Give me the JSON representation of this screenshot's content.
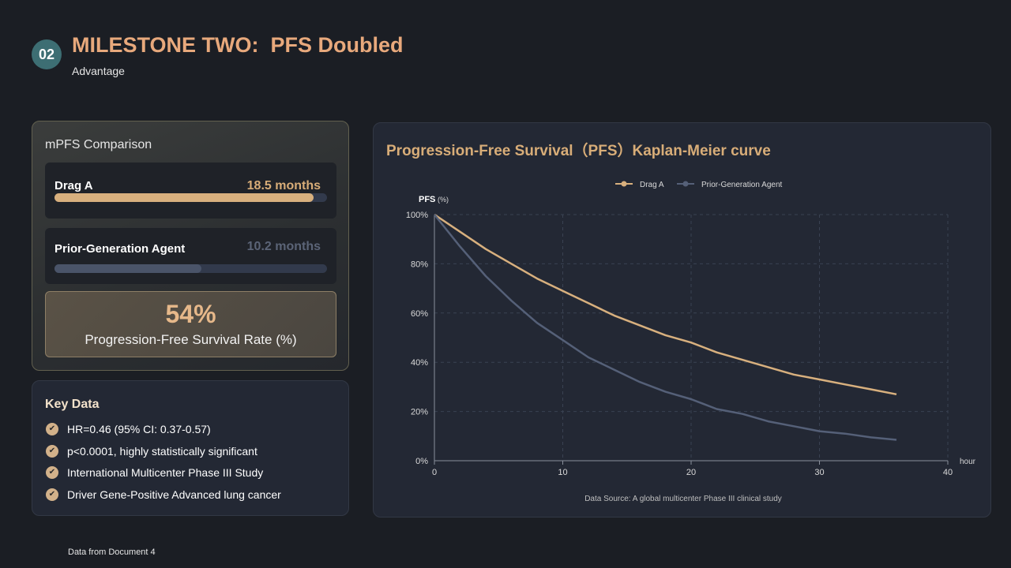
{
  "header": {
    "badge": "02",
    "title": "MILESTONE TWO:  PFS Doubled",
    "subtitle": "Advantage"
  },
  "mpfs": {
    "title": "mPFS Comparison",
    "rows": [
      {
        "label": "Drag A",
        "value_text": "18.5 months",
        "fill_fraction": 0.95
      },
      {
        "label": "Prior-Generation Agent",
        "value_text": "10.2 months",
        "fill_fraction": 0.54
      }
    ],
    "stat": {
      "value": "54%",
      "label": "Progression-Free Survival Rate (%)"
    }
  },
  "key_data": {
    "title": "Key Data",
    "items": [
      "HR=0.46 (95% CI: 0.37-0.57)",
      "p<0.0001, highly statistically significant",
      "International Multicenter Phase III Study",
      "Driver Gene-Positive Advanced lung cancer"
    ]
  },
  "chart_data": {
    "type": "line",
    "title": "Progression-Free Survival（PFS）Kaplan-Meier curve",
    "ylabel": "PFS",
    "ylabel_unit": "(%)",
    "xlabel": "hour",
    "xlim": [
      0,
      40
    ],
    "ylim": [
      0,
      100
    ],
    "x_ticks": [
      0,
      10,
      20,
      30,
      40
    ],
    "y_ticks": [
      0,
      20,
      40,
      60,
      80,
      100
    ],
    "y_tick_labels": [
      "0%",
      "20%",
      "40%",
      "60%",
      "80%",
      "100%"
    ],
    "grid": true,
    "legend_position": "top-center",
    "series": [
      {
        "name": "Drag A",
        "color": "#d8b07e",
        "x": [
          0,
          2,
          4,
          6,
          8,
          10,
          12,
          14,
          16,
          18,
          20,
          22,
          24,
          26,
          28,
          30,
          32,
          34,
          36
        ],
        "y": [
          100,
          93,
          86,
          80,
          74,
          69,
          64,
          59,
          55,
          51,
          48,
          44,
          41,
          38,
          35,
          33,
          31,
          29,
          27
        ]
      },
      {
        "name": "Prior-Generation Agent",
        "color": "#556078",
        "x": [
          0,
          2,
          4,
          6,
          8,
          10,
          12,
          14,
          16,
          18,
          20,
          22,
          24,
          26,
          28,
          30,
          32,
          34,
          36
        ],
        "y": [
          100,
          87,
          75,
          65,
          56,
          49,
          42,
          37,
          32,
          28,
          25,
          21,
          19,
          16,
          14,
          12,
          11,
          9.5,
          8.5
        ]
      }
    ],
    "source": "Data Source: A global multicenter Phase III clinical study"
  },
  "footer": {
    "text": "Data from Document 4"
  }
}
